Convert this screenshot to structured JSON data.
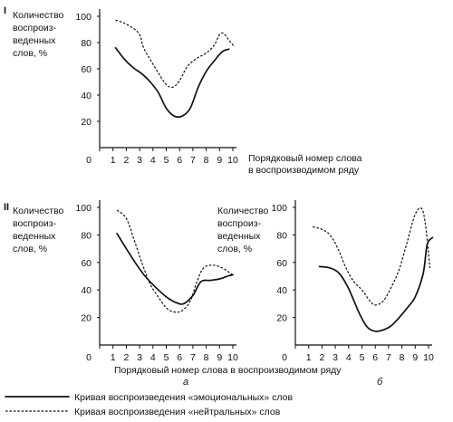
{
  "figure": {
    "labels": {
      "panel_1": "I",
      "panel_2": "II",
      "ylabel_lines": [
        "Количество",
        "воспроиз-",
        "веденных",
        "слов, %"
      ],
      "xlabel_top_lines": [
        "Порядковый номер слова",
        "в воспроизводимом ряду"
      ],
      "xlabel_bottom": "Порядковый номер слова в воспроизводимом ряду",
      "sub_a": "а",
      "sub_b": "б"
    },
    "legend": {
      "emotional": "Кривая воспроизведения «эмоциональных» слов",
      "neutral": "Кривая воспроизведения «нейтральных» слов"
    }
  },
  "chart_data": [
    {
      "type": "line",
      "panel": "I",
      "x_ticks": [
        "0",
        "1",
        "2",
        "3",
        "4",
        "5",
        "6",
        "7",
        "8",
        "9",
        "10"
      ],
      "y_ticks": [
        "20",
        "40",
        "60",
        "80",
        "100"
      ],
      "xlim": [
        0,
        10
      ],
      "ylim": [
        0,
        100
      ],
      "series": [
        {
          "style": "solid",
          "legend_ref": "emotional",
          "x": [
            1.2,
            1.8,
            2.5,
            3.2,
            3.8,
            4.4,
            5.0,
            5.6,
            6.2,
            6.8,
            7.4,
            8.0,
            8.6,
            9.2,
            9.7
          ],
          "values": [
            76,
            68,
            61,
            56,
            50,
            42,
            30,
            24,
            24,
            30,
            46,
            58,
            66,
            73,
            75
          ]
        },
        {
          "style": "dashed",
          "legend_ref": "neutral",
          "x": [
            1.2,
            1.8,
            2.5,
            3.0,
            3.3,
            3.8,
            4.4,
            5.0,
            5.5,
            6.0,
            6.6,
            7.3,
            8.0,
            8.6,
            9.0,
            9.3,
            9.7,
            10.1
          ],
          "values": [
            97,
            95,
            91,
            86,
            76,
            67,
            57,
            48,
            46,
            51,
            62,
            68,
            72,
            78,
            86,
            87,
            82,
            77
          ]
        }
      ]
    },
    {
      "type": "line",
      "panel": "II-а",
      "x_ticks": [
        "0",
        "1",
        "2",
        "3",
        "4",
        "5",
        "6",
        "7",
        "8",
        "9",
        "10"
      ],
      "y_ticks": [
        "20",
        "40",
        "60",
        "80",
        "100"
      ],
      "xlim": [
        0,
        10
      ],
      "ylim": [
        0,
        100
      ],
      "series": [
        {
          "style": "solid",
          "legend_ref": "emotional",
          "x": [
            1.3,
            2.0,
            2.8,
            3.5,
            4.2,
            5.0,
            5.7,
            6.3,
            7.0,
            7.6,
            8.3,
            9.0,
            9.6,
            10.0
          ],
          "values": [
            81,
            70,
            58,
            49,
            42,
            35,
            31,
            30,
            36,
            46,
            47,
            48,
            50,
            51
          ]
        },
        {
          "style": "dashed",
          "legend_ref": "neutral",
          "x": [
            1.3,
            2.0,
            2.6,
            3.2,
            3.8,
            4.4,
            5.0,
            5.6,
            6.2,
            6.8,
            7.3,
            7.8,
            8.5,
            9.2,
            10.0
          ],
          "values": [
            98,
            92,
            76,
            59,
            44,
            35,
            27,
            24,
            25,
            32,
            46,
            56,
            58,
            56,
            51
          ]
        }
      ]
    },
    {
      "type": "line",
      "panel": "II-б",
      "x_ticks": [
        "0",
        "1",
        "2",
        "3",
        "4",
        "5",
        "6",
        "7",
        "8",
        "9",
        "10"
      ],
      "y_ticks": [
        "20",
        "40",
        "60",
        "80",
        "100"
      ],
      "xlim": [
        0,
        10
      ],
      "ylim": [
        0,
        100
      ],
      "series": [
        {
          "style": "solid",
          "legend_ref": "emotional",
          "x": [
            1.8,
            2.6,
            3.3,
            4.0,
            4.8,
            5.4,
            6.0,
            6.6,
            7.2,
            7.8,
            8.4,
            9.0,
            9.6,
            9.9,
            10.3
          ],
          "values": [
            57,
            56,
            52,
            41,
            23,
            13,
            10,
            11,
            14,
            20,
            27,
            35,
            52,
            73,
            78
          ]
        },
        {
          "style": "dashed",
          "legend_ref": "neutral",
          "x": [
            1.3,
            2.0,
            2.6,
            3.2,
            3.8,
            4.4,
            5.0,
            5.6,
            6.0,
            6.6,
            7.2,
            7.8,
            8.4,
            9.0,
            9.5,
            9.8,
            10.1
          ],
          "values": [
            86,
            84,
            80,
            70,
            56,
            46,
            40,
            32,
            29,
            32,
            42,
            55,
            75,
            95,
            99,
            85,
            56
          ]
        }
      ]
    }
  ]
}
